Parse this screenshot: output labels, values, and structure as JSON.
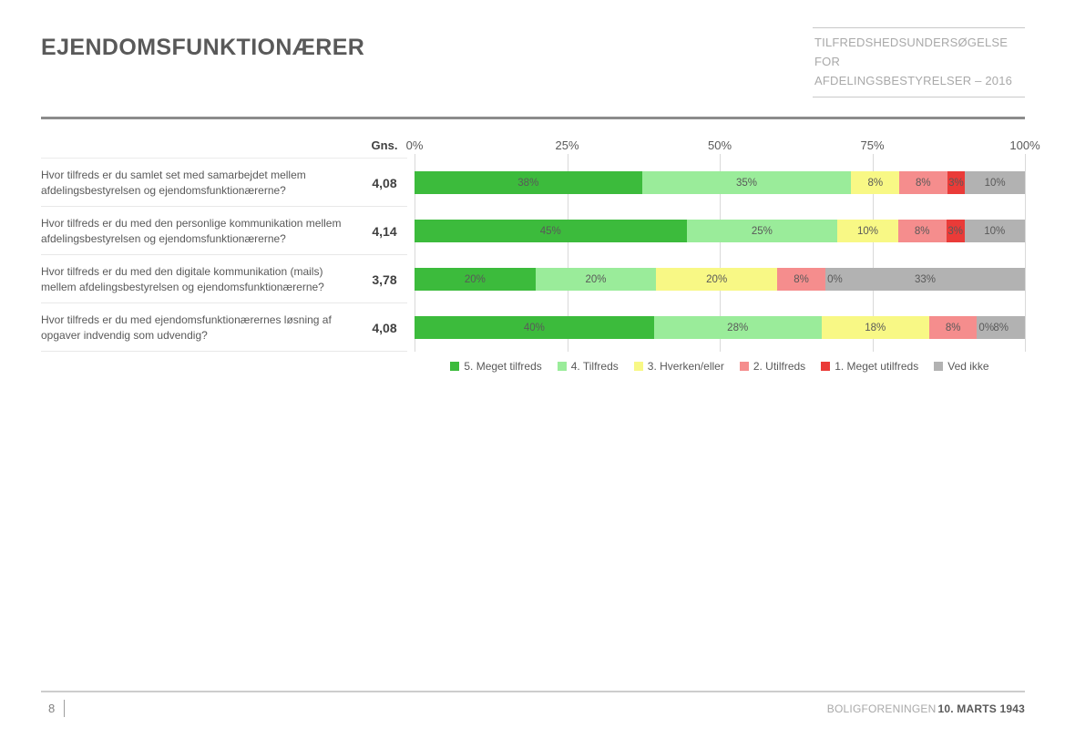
{
  "slide": {
    "title": "EJENDOMSFUNKTIONÆRER",
    "header_box": {
      "line1": "TILFREDSHEDSUNDERSØGELSE FOR",
      "line2": "AFDELINGSBESTYRELSER – 2016"
    },
    "footer": {
      "page_number": "8",
      "org": "BOLIGFORENINGEN",
      "date": "10. MARTS 1943"
    }
  },
  "chart_data": {
    "type": "bar",
    "orientation": "horizontal",
    "stacked": true,
    "grid": true,
    "xlim": [
      0,
      100
    ],
    "gns_header": "Gns.",
    "axis_ticks": [
      "0%",
      "25%",
      "50%",
      "75%",
      "100%"
    ],
    "legend_position": "bottom",
    "legend": [
      {
        "name": "5. Meget tilfreds",
        "color": "#3CBB3C"
      },
      {
        "name": "4. Tilfreds",
        "color": "#9AEC9A"
      },
      {
        "name": "3. Hverken/eller",
        "color": "#F8F885"
      },
      {
        "name": "2. Utilfreds",
        "color": "#F58D8D"
      },
      {
        "name": "1. Meget utilfreds",
        "color": "#EA3B38"
      },
      {
        "name": "Ved ikke",
        "color": "#B2B2B2"
      }
    ],
    "rows": [
      {
        "question": "Hvor tilfreds er du samlet set med samarbejdet mellem afdelingsbestyrelsen og ejendomsfunktionærerne?",
        "gns": "4,08",
        "values": [
          38,
          35,
          8,
          8,
          3,
          10
        ],
        "labels": [
          "38%",
          "35%",
          "8%",
          "8%",
          "3%",
          "10%"
        ]
      },
      {
        "question": "Hvor tilfreds er du med den personlige kommunikation mellem afdelingsbestyrelsen og ejendomsfunktionærerne?",
        "gns": "4,14",
        "values": [
          45,
          25,
          10,
          8,
          3,
          10
        ],
        "labels": [
          "45%",
          "25%",
          "10%",
          "8%",
          "3%",
          "10%"
        ]
      },
      {
        "question": "Hvor tilfreds er du med den digitale kommunikation (mails) mellem afdelingsbestyrelsen og ejendomsfunktionærerne?",
        "gns": "3,78",
        "values": [
          20,
          20,
          20,
          8,
          0,
          33
        ],
        "labels": [
          "20%",
          "20%",
          "20%",
          "8%",
          "0%",
          "33%"
        ]
      },
      {
        "question": "Hvor tilfreds er du med ejendomsfunktionærernes løsning af opgaver indvendig som udvendig?",
        "gns": "4,08",
        "values": [
          40,
          28,
          18,
          8,
          0,
          8
        ],
        "labels": [
          "40%",
          "28%",
          "18%",
          "8%",
          "0%",
          "8%"
        ]
      }
    ]
  }
}
